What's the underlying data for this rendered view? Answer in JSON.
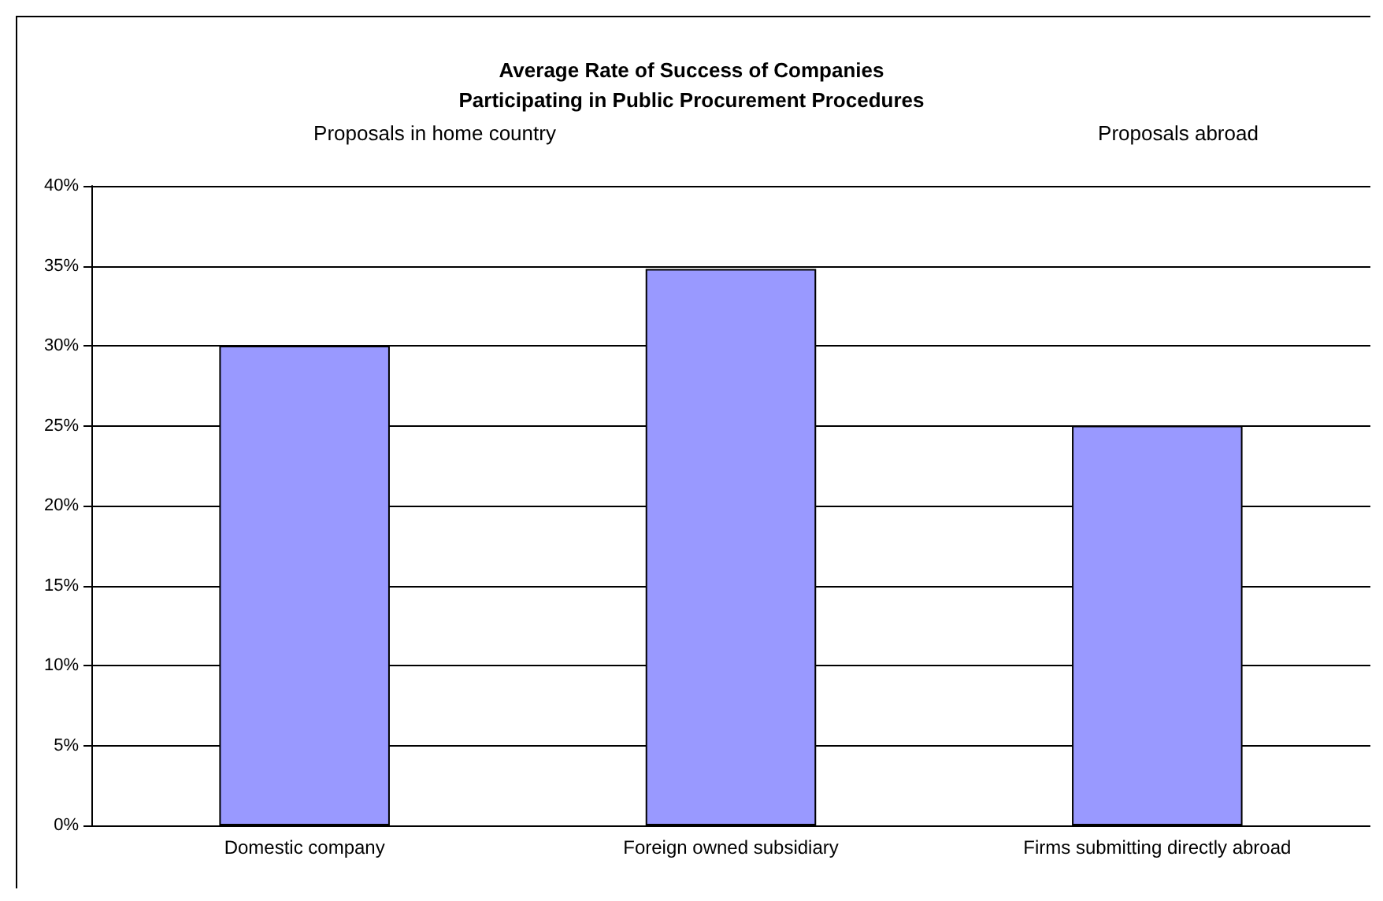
{
  "chart_data": {
    "type": "bar",
    "title": "Average Rate of Success of Companies\nParticipating in Public Procurement Procedures",
    "categories": [
      "Domestic company",
      "Foreign owned subsidiary",
      "Firms submitting directly abroad"
    ],
    "values": [
      30,
      34.8,
      25
    ],
    "color": "#9999ff",
    "ylim": [
      0,
      40
    ],
    "yticks": [
      {
        "value": 0,
        "label": "0%"
      },
      {
        "value": 5,
        "label": "5%"
      },
      {
        "value": 10,
        "label": "10%"
      },
      {
        "value": 15,
        "label": "15%"
      },
      {
        "value": 20,
        "label": "20%"
      },
      {
        "value": 25,
        "label": "25%"
      },
      {
        "value": 30,
        "label": "30%"
      },
      {
        "value": 35,
        "label": "35%"
      },
      {
        "value": 40,
        "label": "40%"
      }
    ],
    "grid": "y",
    "annotations": [
      "Proposals in home country",
      "Proposals abroad"
    ]
  }
}
